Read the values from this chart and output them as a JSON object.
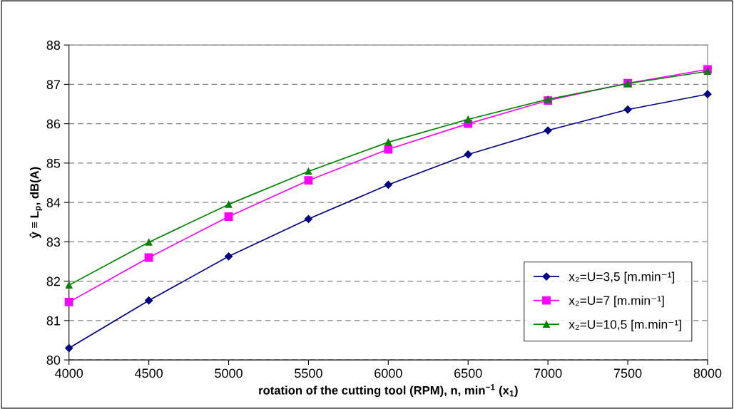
{
  "chart_data": {
    "type": "line",
    "xlabel": "rotation of the cutting tool (RPM), n, min$^{−1}$ (x$_{1}$)",
    "ylabel": "ŷ ≡ L$_{p}$, dB(A)",
    "x": [
      4000,
      4500,
      5000,
      5500,
      6000,
      6500,
      7000,
      7500,
      8000
    ],
    "series": [
      {
        "name": "x₂=U=3,5 [m.min⁻¹]",
        "color": "#000080",
        "marker": "diamond",
        "values": [
          80.3,
          81.51,
          82.63,
          83.58,
          84.45,
          85.22,
          85.83,
          86.36,
          86.75
        ]
      },
      {
        "name": "x₂=U=7 [m.min⁻¹]",
        "color": "#ff00ff",
        "marker": "square",
        "values": [
          81.47,
          82.6,
          83.64,
          84.56,
          85.35,
          86.0,
          86.59,
          87.03,
          87.38
        ]
      },
      {
        "name": "x₂=U=10,5 [m.min⁻¹]",
        "color": "#008000",
        "marker": "triangle",
        "values": [
          81.9,
          82.99,
          83.95,
          84.79,
          85.53,
          86.11,
          86.62,
          87.02,
          87.33
        ]
      }
    ],
    "xlim": [
      4000,
      8000
    ],
    "xticks": [
      4000,
      4500,
      5000,
      5500,
      6000,
      6500,
      7000,
      7500,
      8000
    ],
    "ylim": [
      80,
      88
    ],
    "yticks": [
      80,
      81,
      82,
      83,
      84,
      85,
      86,
      87,
      88
    ],
    "grid": "y",
    "legend": "bottom right",
    "line_style": "solid"
  }
}
